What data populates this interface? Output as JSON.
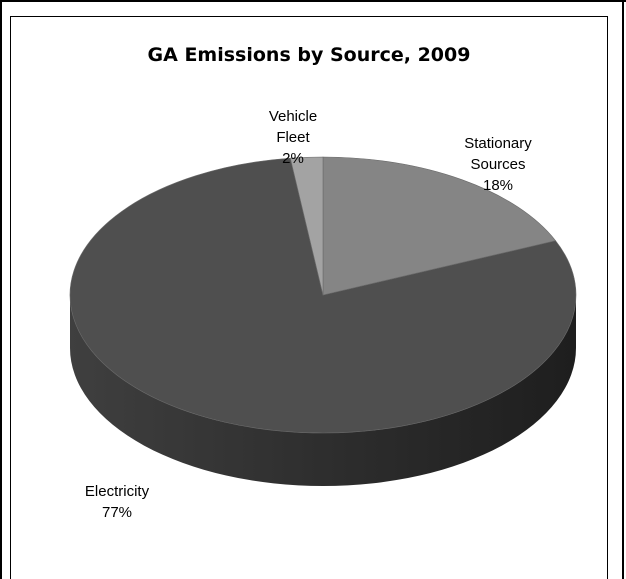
{
  "chart_data": {
    "type": "pie",
    "title": "GA Emissions by Source, 2009",
    "categories": [
      "Stationary Sources",
      "Electricity",
      "Vehicle Fleet"
    ],
    "values": [
      18,
      77,
      2
    ],
    "display_labels": [
      [
        "Stationary",
        "Sources",
        "18%"
      ],
      [
        "Electricity",
        "77%"
      ],
      [
        "Vehicle",
        "Fleet",
        "2%"
      ]
    ],
    "colors": [
      "#858585",
      "#4f4f4f",
      "#a3a3a3"
    ],
    "style": "3d",
    "legend": "none"
  }
}
